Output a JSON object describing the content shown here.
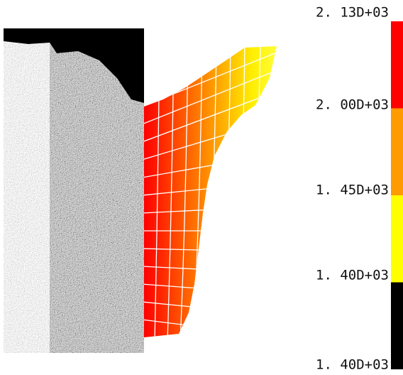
{
  "legend": {
    "labels": [
      "2. 13D+03",
      "2. 00D+03",
      "1. 45D+03",
      "1. 40D+03",
      "1. 40D+03"
    ],
    "colors": [
      "#ff0000",
      "#ff9a00",
      "#ffff00",
      "#000000"
    ]
  }
}
